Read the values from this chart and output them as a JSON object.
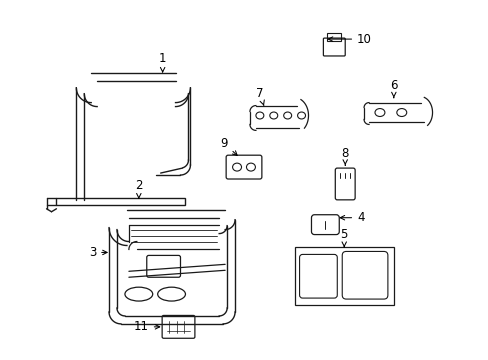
{
  "bg_color": "#ffffff",
  "line_color": "#1a1a1a",
  "fig_width": 4.89,
  "fig_height": 3.6,
  "dpi": 100,
  "labels": {
    "1": [
      148,
      295,
      148,
      308
    ],
    "2": [
      138,
      222,
      138,
      232
    ],
    "3": [
      112,
      248,
      100,
      248
    ],
    "4": [
      340,
      222,
      358,
      222
    ],
    "5": [
      340,
      268,
      340,
      255
    ],
    "6": [
      385,
      93,
      385,
      80
    ],
    "7": [
      258,
      110,
      258,
      97
    ],
    "8": [
      348,
      178,
      348,
      165
    ],
    "9": [
      234,
      165,
      222,
      165
    ],
    "10": [
      325,
      42,
      358,
      42
    ],
    "11": [
      180,
      325,
      168,
      325
    ]
  }
}
